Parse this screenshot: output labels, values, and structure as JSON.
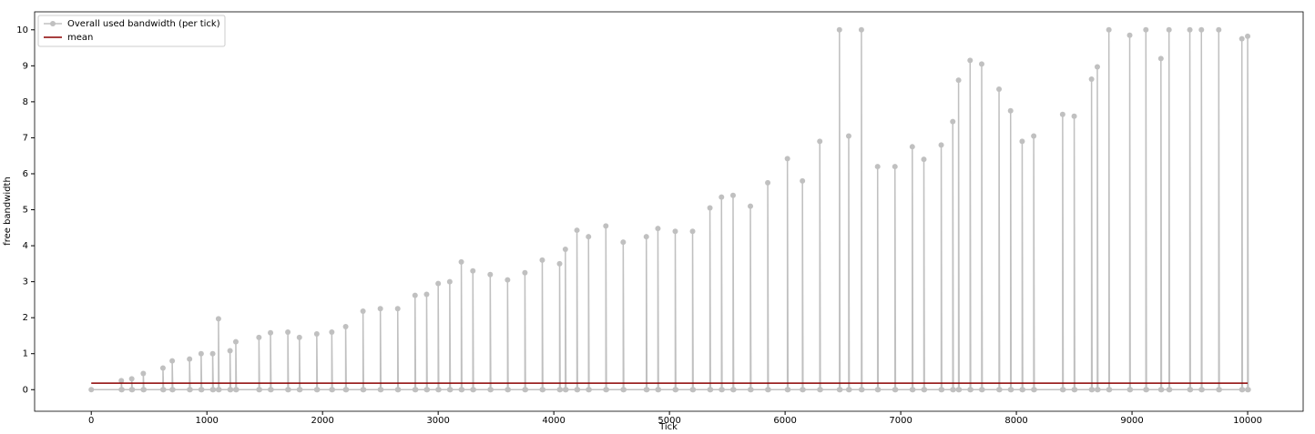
{
  "chart_data": {
    "type": "line",
    "x_label": "Tick",
    "y_label": "free bandwidth",
    "xlim": [
      -490,
      10480
    ],
    "ylim": [
      -0.6,
      10.5
    ],
    "xticks": [
      0,
      1000,
      2000,
      3000,
      4000,
      5000,
      6000,
      7000,
      8000,
      9000,
      10000
    ],
    "yticks": [
      0,
      1,
      2,
      3,
      4,
      5,
      6,
      7,
      8,
      9,
      10
    ],
    "legend": "upper-left",
    "series": [
      {
        "name": "Overall used bandwidth (per tick)",
        "color": "#c0c0c0",
        "marker": true,
        "x": [
          0,
          260,
          260,
          265,
          350,
          350,
          355,
          450,
          450,
          455,
          620,
          620,
          625,
          700,
          700,
          705,
          850,
          850,
          855,
          950,
          950,
          955,
          1050,
          1050,
          1055,
          1100,
          1100,
          1105,
          1200,
          1200,
          1205,
          1250,
          1250,
          1255,
          1450,
          1450,
          1455,
          1550,
          1550,
          1555,
          1700,
          1700,
          1705,
          1800,
          1800,
          1805,
          1950,
          1950,
          1955,
          2080,
          2080,
          2085,
          2200,
          2200,
          2205,
          2350,
          2350,
          2355,
          2500,
          2500,
          2505,
          2650,
          2650,
          2655,
          2800,
          2800,
          2805,
          2900,
          2900,
          2905,
          3000,
          3000,
          3005,
          3100,
          3100,
          3105,
          3200,
          3200,
          3205,
          3300,
          3300,
          3305,
          3450,
          3450,
          3455,
          3600,
          3600,
          3605,
          3750,
          3750,
          3755,
          3900,
          3900,
          3905,
          4050,
          4050,
          4055,
          4100,
          4100,
          4105,
          4200,
          4200,
          4205,
          4300,
          4300,
          4305,
          4450,
          4450,
          4455,
          4600,
          4600,
          4605,
          4800,
          4800,
          4805,
          4900,
          4900,
          4905,
          5050,
          5050,
          5055,
          5200,
          5200,
          5205,
          5350,
          5350,
          5355,
          5450,
          5450,
          5455,
          5550,
          5550,
          5555,
          5700,
          5700,
          5705,
          5850,
          5850,
          5855,
          6020,
          6020,
          6025,
          6150,
          6150,
          6155,
          6300,
          6300,
          6305,
          6470,
          6470,
          6475,
          6550,
          6550,
          6555,
          6660,
          6660,
          6665,
          6800,
          6800,
          6805,
          6950,
          6950,
          6955,
          7100,
          7100,
          7105,
          7200,
          7200,
          7205,
          7350,
          7350,
          7355,
          7450,
          7450,
          7455,
          7500,
          7500,
          7505,
          7600,
          7600,
          7605,
          7700,
          7700,
          7705,
          7850,
          7850,
          7855,
          7950,
          7950,
          7955,
          8050,
          8050,
          8055,
          8150,
          8150,
          8155,
          8400,
          8400,
          8405,
          8500,
          8500,
          8505,
          8650,
          8650,
          8655,
          8700,
          8700,
          8705,
          8800,
          8800,
          8805,
          8980,
          8980,
          8985,
          9120,
          9120,
          9125,
          9250,
          9250,
          9255,
          9320,
          9320,
          9325,
          9500,
          9500,
          9505,
          9600,
          9600,
          9605,
          9750,
          9750,
          9755,
          9950,
          9950,
          9955,
          10000,
          10000,
          10005
        ],
        "values": [
          0,
          0,
          0.25,
          0,
          0,
          0.3,
          0,
          0,
          0.45,
          0,
          0,
          0.6,
          0,
          0,
          0.8,
          0,
          0,
          0.85,
          0,
          0,
          1.0,
          0,
          0,
          1.0,
          0,
          0,
          1.97,
          0,
          0,
          1.08,
          0,
          0,
          1.33,
          0,
          0,
          1.45,
          0,
          0,
          1.58,
          0,
          0,
          1.6,
          0,
          0,
          1.45,
          0,
          0,
          1.55,
          0,
          0,
          1.6,
          0,
          0,
          1.75,
          0,
          0,
          2.18,
          0,
          0,
          2.25,
          0,
          0,
          2.25,
          0,
          0,
          2.62,
          0,
          0,
          2.65,
          0,
          0,
          2.95,
          0,
          0,
          3.0,
          0,
          0,
          3.55,
          0,
          0,
          3.3,
          0,
          0,
          3.2,
          0,
          0,
          3.05,
          0,
          0,
          3.25,
          0,
          0,
          3.6,
          0,
          0,
          3.5,
          0,
          0,
          3.9,
          0,
          0,
          4.43,
          0,
          0,
          4.25,
          0,
          0,
          4.55,
          0,
          0,
          4.1,
          0,
          0,
          4.25,
          0,
          0,
          4.48,
          0,
          0,
          4.4,
          0,
          0,
          4.4,
          0,
          0,
          5.05,
          0,
          0,
          5.35,
          0,
          0,
          5.4,
          0,
          0,
          5.1,
          0,
          0,
          5.75,
          0,
          0,
          6.42,
          0,
          0,
          5.8,
          0,
          0,
          6.9,
          0,
          0,
          10.0,
          0,
          0,
          7.05,
          0,
          0,
          10.0,
          0,
          0,
          6.2,
          0,
          0,
          6.2,
          0,
          0,
          6.75,
          0,
          0,
          6.4,
          0,
          0,
          6.8,
          0,
          0,
          7.45,
          0,
          0,
          8.6,
          0,
          0,
          9.15,
          0,
          0,
          9.05,
          0,
          0,
          8.35,
          0,
          0,
          7.75,
          0,
          0,
          6.9,
          0,
          0,
          7.05,
          0,
          0,
          7.65,
          0,
          0,
          7.6,
          0,
          0,
          8.63,
          0,
          0,
          8.97,
          0,
          0,
          10.0,
          0,
          0,
          9.85,
          0,
          0,
          10.0,
          0,
          0,
          9.2,
          0,
          0,
          10.0,
          0,
          0,
          10.0,
          0,
          0,
          10.0,
          0,
          0,
          10.0,
          0,
          0,
          9.75,
          0,
          0,
          9.82,
          0
        ]
      },
      {
        "name": "mean",
        "color": "#8b0000",
        "marker": false,
        "x": [
          0,
          10000
        ],
        "values": [
          0.18,
          0.18
        ]
      }
    ]
  }
}
